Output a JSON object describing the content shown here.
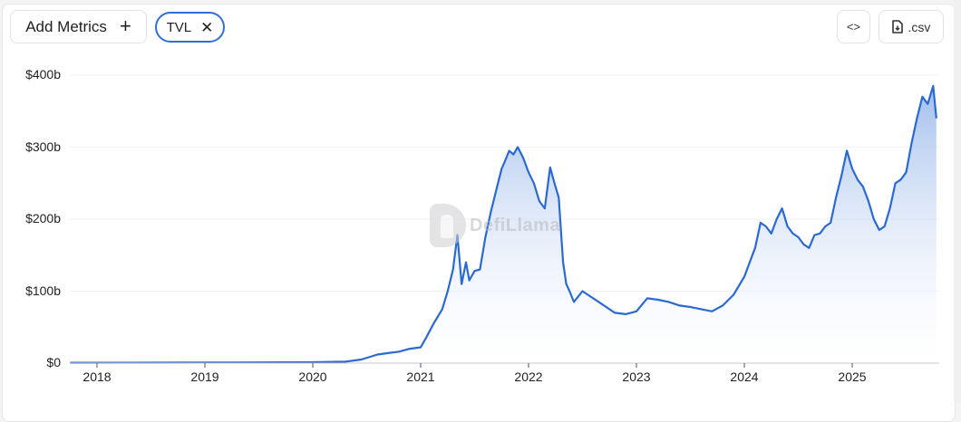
{
  "toolbar": {
    "add_metrics_label": "Add Metrics",
    "add_metrics_icon": "+",
    "chip_label": "TVL",
    "chip_close_icon": "✕",
    "embed_icon": "<>",
    "csv_label": ".csv"
  },
  "watermark": {
    "text": "DefiLlama"
  },
  "colors": {
    "line": "#2a6ad1",
    "fill_top": "#9dbbeb",
    "fill_bottom": "#ffffff",
    "chip_border": "#2f6fd6"
  },
  "chart_data": {
    "type": "area",
    "title": "",
    "series_name": "TVL",
    "xlabel": "",
    "ylabel": "",
    "ylim": [
      0,
      400
    ],
    "y_unit": "$b",
    "y_ticks": [
      "$0",
      "$100b",
      "$200b",
      "$300b",
      "$400b"
    ],
    "y_tick_values": [
      0,
      100,
      200,
      300,
      400
    ],
    "x_ticks": [
      "2018",
      "2019",
      "2020",
      "2021",
      "2022",
      "2023",
      "2024",
      "2025"
    ],
    "x_tick_values": [
      2018,
      2019,
      2020,
      2021,
      2022,
      2023,
      2024,
      2025
    ],
    "grid": true,
    "legend": "none",
    "x": [
      2017.75,
      2018.5,
      2019.0,
      2019.5,
      2020.0,
      2020.3,
      2020.45,
      2020.6,
      2020.7,
      2020.8,
      2020.9,
      2021.0,
      2021.05,
      2021.12,
      2021.2,
      2021.25,
      2021.3,
      2021.34,
      2021.38,
      2021.42,
      2021.45,
      2021.5,
      2021.55,
      2021.6,
      2021.65,
      2021.7,
      2021.75,
      2021.78,
      2021.82,
      2021.86,
      2021.9,
      2021.95,
      2022.0,
      2022.05,
      2022.1,
      2022.15,
      2022.2,
      2022.24,
      2022.28,
      2022.32,
      2022.35,
      2022.38,
      2022.42,
      2022.5,
      2022.55,
      2022.6,
      2022.7,
      2022.8,
      2022.9,
      2023.0,
      2023.1,
      2023.2,
      2023.3,
      2023.4,
      2023.5,
      2023.6,
      2023.7,
      2023.8,
      2023.9,
      2024.0,
      2024.05,
      2024.1,
      2024.15,
      2024.2,
      2024.25,
      2024.3,
      2024.35,
      2024.4,
      2024.45,
      2024.5,
      2024.55,
      2024.6,
      2024.65,
      2024.7,
      2024.75,
      2024.8,
      2024.85,
      2024.9,
      2024.95,
      2025.0,
      2025.05,
      2025.1,
      2025.15,
      2025.2,
      2025.25,
      2025.3,
      2025.35,
      2025.4,
      2025.45,
      2025.5,
      2025.55,
      2025.6,
      2025.65,
      2025.7,
      2025.75,
      2025.78
    ],
    "values": [
      0.5,
      0.6,
      0.8,
      1.0,
      1.2,
      2,
      5,
      12,
      14,
      16,
      20,
      22,
      35,
      55,
      75,
      100,
      130,
      178,
      110,
      140,
      115,
      128,
      130,
      175,
      210,
      240,
      270,
      280,
      295,
      290,
      300,
      285,
      265,
      250,
      225,
      215,
      272,
      250,
      230,
      140,
      110,
      100,
      85,
      100,
      95,
      90,
      80,
      70,
      68,
      72,
      90,
      88,
      85,
      80,
      78,
      75,
      72,
      80,
      95,
      120,
      140,
      160,
      195,
      190,
      180,
      200,
      215,
      190,
      180,
      175,
      165,
      160,
      178,
      180,
      190,
      195,
      230,
      260,
      295,
      270,
      255,
      245,
      225,
      200,
      185,
      190,
      215,
      250,
      255,
      265,
      305,
      340,
      370,
      360,
      385,
      340
    ]
  }
}
